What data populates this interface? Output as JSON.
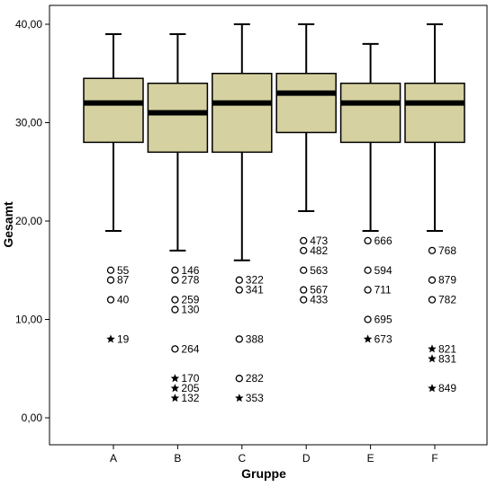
{
  "chart_data": {
    "type": "boxplot",
    "xlabel": "Gruppe",
    "ylabel": "Gesamt",
    "ylim": [
      0,
      40
    ],
    "y_ticks": [
      {
        "value": 0,
        "label": "0,00"
      },
      {
        "value": 10,
        "label": "10,00"
      },
      {
        "value": 20,
        "label": "20,00"
      },
      {
        "value": 30,
        "label": "30,00"
      },
      {
        "value": 40,
        "label": "40,00"
      }
    ],
    "box_color": "#d6d1a0",
    "categories": [
      "A",
      "B",
      "C",
      "D",
      "E",
      "F"
    ],
    "boxes": [
      {
        "category": "A",
        "whisker_low": 19,
        "q1": 28,
        "median": 32,
        "q3": 34.5,
        "whisker_high": 39,
        "outliers": [
          {
            "value": 15,
            "id": "55",
            "marker": "circle"
          },
          {
            "value": 14,
            "id": "87",
            "marker": "circle"
          },
          {
            "value": 12,
            "id": "40",
            "marker": "circle"
          },
          {
            "value": 8,
            "id": "19",
            "marker": "star"
          }
        ]
      },
      {
        "category": "B",
        "whisker_low": 17,
        "q1": 27,
        "median": 31,
        "q3": 34,
        "whisker_high": 39,
        "outliers": [
          {
            "value": 15,
            "id": "146",
            "marker": "circle"
          },
          {
            "value": 14,
            "id": "278",
            "marker": "circle"
          },
          {
            "value": 12,
            "id": "259",
            "marker": "circle"
          },
          {
            "value": 11,
            "id": "130",
            "marker": "circle"
          },
          {
            "value": 7,
            "id": "264",
            "marker": "circle"
          },
          {
            "value": 4,
            "id": "170",
            "marker": "star"
          },
          {
            "value": 3,
            "id": "205",
            "marker": "star"
          },
          {
            "value": 2,
            "id": "132",
            "marker": "star"
          }
        ]
      },
      {
        "category": "C",
        "whisker_low": 16,
        "q1": 27,
        "median": 32,
        "q3": 35,
        "whisker_high": 40,
        "outliers": [
          {
            "value": 14,
            "id": "322",
            "marker": "circle"
          },
          {
            "value": 13,
            "id": "341",
            "marker": "circle"
          },
          {
            "value": 8,
            "id": "388",
            "marker": "circle"
          },
          {
            "value": 4,
            "id": "282",
            "marker": "circle"
          },
          {
            "value": 2,
            "id": "353",
            "marker": "star"
          }
        ]
      },
      {
        "category": "D",
        "whisker_low": 21,
        "q1": 29,
        "median": 33,
        "q3": 35,
        "whisker_high": 40,
        "outliers": [
          {
            "value": 18,
            "id": "473",
            "marker": "circle"
          },
          {
            "value": 17,
            "id": "482",
            "marker": "circle"
          },
          {
            "value": 15,
            "id": "563",
            "marker": "circle"
          },
          {
            "value": 13,
            "id": "567",
            "marker": "circle"
          },
          {
            "value": 12,
            "id": "433",
            "marker": "circle"
          }
        ]
      },
      {
        "category": "E",
        "whisker_low": 19,
        "q1": 28,
        "median": 32,
        "q3": 34,
        "whisker_high": 38,
        "outliers": [
          {
            "value": 18,
            "id": "666",
            "marker": "circle"
          },
          {
            "value": 15,
            "id": "594",
            "marker": "circle"
          },
          {
            "value": 13,
            "id": "711",
            "marker": "circle"
          },
          {
            "value": 10,
            "id": "695",
            "marker": "circle"
          },
          {
            "value": 8,
            "id": "673",
            "marker": "star"
          }
        ]
      },
      {
        "category": "F",
        "whisker_low": 19,
        "q1": 28,
        "median": 32,
        "q3": 34,
        "whisker_high": 40,
        "outliers": [
          {
            "value": 17,
            "id": "768",
            "marker": "circle"
          },
          {
            "value": 14,
            "id": "879",
            "marker": "circle"
          },
          {
            "value": 12,
            "id": "782",
            "marker": "circle"
          },
          {
            "value": 7,
            "id": "821",
            "marker": "star"
          },
          {
            "value": 6,
            "id": "831",
            "marker": "star"
          },
          {
            "value": 3,
            "id": "849",
            "marker": "star"
          }
        ]
      }
    ]
  }
}
